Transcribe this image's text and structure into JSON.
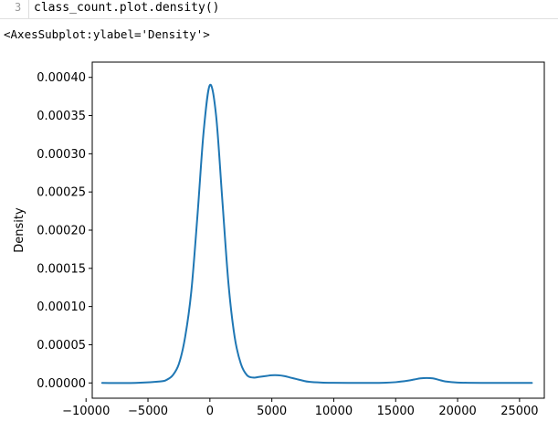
{
  "cell": {
    "line_number": "3",
    "code": "class_count.plot.density()"
  },
  "output": {
    "repr": "<AxesSubplot:ylabel='Density'>"
  },
  "colors": {
    "line": "#1f77b4",
    "axes": "#000000",
    "background": "#ffffff"
  },
  "chart_data": {
    "type": "line",
    "title": "",
    "xlabel": "",
    "ylabel": "Density",
    "xlim": [
      -9500,
      27000
    ],
    "ylim": [
      -2e-05,
      0.00042
    ],
    "grid": false,
    "legend": "none",
    "xticks": [
      -10000,
      -5000,
      0,
      5000,
      10000,
      15000,
      20000,
      25000
    ],
    "xtick_labels": [
      "−10000",
      "−5000",
      "0",
      "5000",
      "10000",
      "15000",
      "20000",
      "25000"
    ],
    "yticks": [
      0,
      5e-05,
      0.0001,
      0.00015,
      0.0002,
      0.00025,
      0.0003,
      0.00035,
      0.0004
    ],
    "ytick_labels": [
      "0.00000",
      "0.00005",
      "0.00010",
      "0.00015",
      "0.00020",
      "0.00025",
      "0.00030",
      "0.00035",
      "0.00040"
    ],
    "series": [
      {
        "x": [
          -8700,
          -6000,
          -4000,
          -3500,
          -3000,
          -2500,
          -2000,
          -1500,
          -1000,
          -500,
          0,
          500,
          1000,
          1500,
          2000,
          2500,
          3000,
          3500,
          4000,
          4500,
          5000,
          5500,
          6000,
          6500,
          7000,
          7500,
          8000,
          9000,
          10000,
          12000,
          14000,
          15000,
          16000,
          16500,
          17000,
          17500,
          18000,
          18500,
          19000,
          20000,
          22000,
          26000
        ],
        "y": [
          0,
          0,
          2e-06,
          4e-06,
          1e-05,
          2.5e-05,
          6e-05,
          0.00012,
          0.00022,
          0.00033,
          0.00039,
          0.00035,
          0.00024,
          0.00013,
          6e-05,
          2.5e-05,
          1e-05,
          7e-06,
          8e-06,
          9e-06,
          1e-05,
          1e-05,
          9e-06,
          7e-06,
          5e-06,
          3e-06,
          1.5e-06,
          5e-07,
          2e-07,
          0,
          2e-07,
          1e-06,
          3e-06,
          4.5e-06,
          6e-06,
          6.5e-06,
          6e-06,
          4e-06,
          2e-06,
          5e-07,
          0,
          0
        ]
      }
    ]
  }
}
